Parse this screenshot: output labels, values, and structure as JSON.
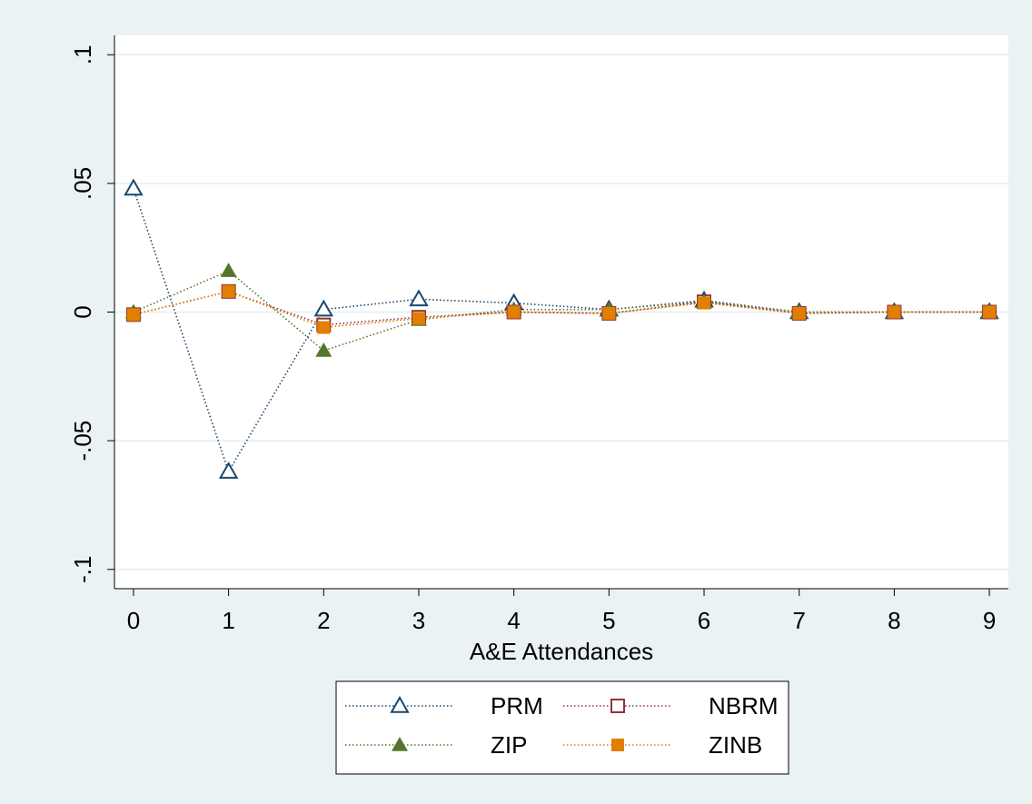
{
  "chart_data": {
    "type": "line",
    "xlabel": "A&E Attendances",
    "ylabel": "",
    "x": [
      0,
      1,
      2,
      3,
      4,
      5,
      6,
      7,
      8,
      9
    ],
    "xticks": [
      "0",
      "1",
      "2",
      "3",
      "4",
      "5",
      "6",
      "7",
      "8",
      "9"
    ],
    "yticks": [
      {
        "value": 0.1,
        "label": ".1"
      },
      {
        "value": 0.05,
        "label": ".05"
      },
      {
        "value": 0,
        "label": "0"
      },
      {
        "value": -0.05,
        "label": "-.05"
      },
      {
        "value": -0.1,
        "label": "-.1"
      }
    ],
    "xlim": [
      -0.2,
      9.2
    ],
    "ylim": [
      -0.1075,
      0.1075
    ],
    "grid": true,
    "legend_position": "bottom",
    "series": [
      {
        "name": "PRM",
        "color": "#1a476f",
        "marker": "hollow-triangle",
        "values": [
          0.048,
          -0.062,
          0.001,
          0.005,
          0.0035,
          0.001,
          0.0045,
          0.0,
          0.0,
          0.0
        ]
      },
      {
        "name": "NBRM",
        "color": "#90353b",
        "marker": "hollow-square",
        "values": [
          -0.001,
          0.008,
          -0.005,
          -0.002,
          0.0,
          -0.0005,
          0.004,
          -0.0005,
          0.0,
          0.0
        ]
      },
      {
        "name": "ZIP",
        "color": "#55752f",
        "marker": "filled-triangle",
        "values": [
          0.0,
          0.016,
          -0.015,
          -0.003,
          0.001,
          0.001,
          0.004,
          0.0,
          0.0,
          0.0
        ]
      },
      {
        "name": "ZINB",
        "color": "#e37e00",
        "marker": "filled-square",
        "values": [
          -0.001,
          0.008,
          -0.006,
          -0.0025,
          0.0,
          -0.0005,
          0.0035,
          -0.0005,
          0.0,
          0.0
        ]
      }
    ]
  }
}
